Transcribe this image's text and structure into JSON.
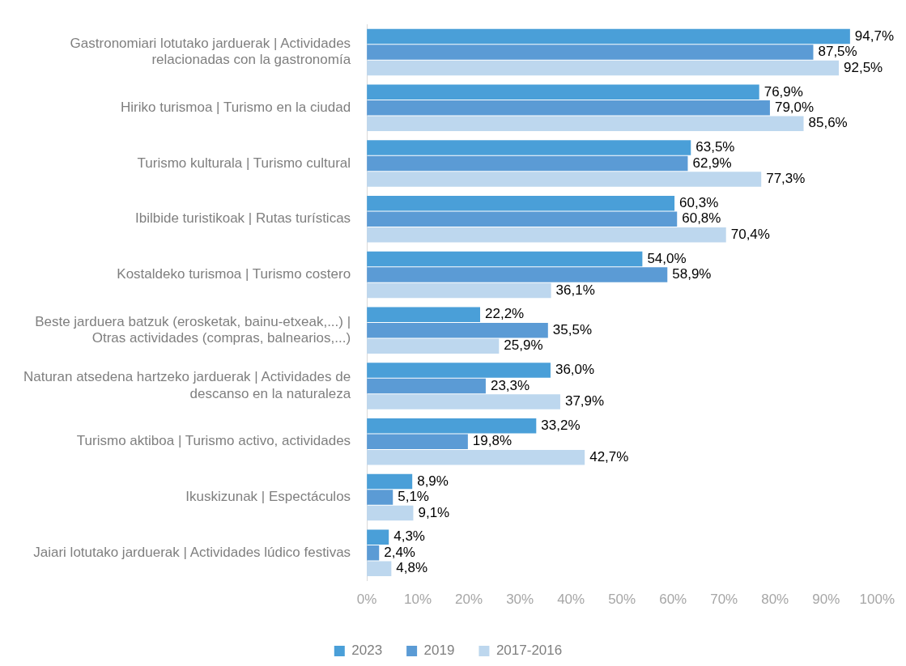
{
  "chart_data": {
    "type": "bar",
    "orientation": "horizontal",
    "categories": [
      "Gastronomiari lotutako jarduerak | Actividades\nrelacionadas con la gastronomía",
      "Hiriko turismoa | Turismo en la ciudad",
      "Turismo kulturala | Turismo cultural",
      "Ibilbide turistikoak | Rutas turísticas",
      "Kostaldeko turismoa | Turismo costero",
      "Beste jarduera batzuk (erosketak, bainu-etxeak,...) |\nOtras actividades (compras, balnearios,...)",
      "Naturan atsedena hartzeko jarduerak | Actividades de\ndescanso en la naturaleza",
      "Turismo aktiboa | Turismo activo, actividades",
      "Ikuskizunak | Espectáculos",
      "Jaiari lotutako jarduerak | Actividades lúdico festivas"
    ],
    "series": [
      {
        "name": "2023",
        "color": "#4a9fd8",
        "values": [
          94.7,
          76.9,
          63.5,
          60.3,
          54.0,
          22.2,
          36.0,
          33.2,
          8.9,
          4.3
        ],
        "value_labels": [
          "94,7%",
          "76,9%",
          "63,5%",
          "60,3%",
          "54,0%",
          "22,2%",
          "36,0%",
          "33,2%",
          "8,9%",
          "4,3%"
        ]
      },
      {
        "name": "2019",
        "color": "#5b9bd5",
        "values": [
          87.5,
          79.0,
          62.9,
          60.8,
          58.9,
          35.5,
          23.3,
          19.8,
          5.1,
          2.4
        ],
        "value_labels": [
          "87,5%",
          "79,0%",
          "62,9%",
          "60,8%",
          "58,9%",
          "35,5%",
          "23,3%",
          "19,8%",
          "5,1%",
          "2,4%"
        ]
      },
      {
        "name": "2017-2016",
        "color": "#bdd7ee",
        "values": [
          92.5,
          85.6,
          77.3,
          70.4,
          36.1,
          25.9,
          37.9,
          42.7,
          9.1,
          4.8
        ],
        "value_labels": [
          "92,5%",
          "85,6%",
          "77,3%",
          "70,4%",
          "36,1%",
          "25,9%",
          "37,9%",
          "42,7%",
          "9,1%",
          "4,8%"
        ]
      }
    ],
    "xlim": [
      0,
      100
    ],
    "xticks": [
      {
        "value": 0,
        "label": "0%"
      },
      {
        "value": 10,
        "label": "10%"
      },
      {
        "value": 20,
        "label": "20%"
      },
      {
        "value": 30,
        "label": "30%"
      },
      {
        "value": 40,
        "label": "40%"
      },
      {
        "value": 50,
        "label": "50%"
      },
      {
        "value": 60,
        "label": "60%"
      },
      {
        "value": 70,
        "label": "70%"
      },
      {
        "value": 80,
        "label": "80%"
      },
      {
        "value": 90,
        "label": "90%"
      },
      {
        "value": 100,
        "label": "100%"
      }
    ],
    "grid": false,
    "legend": "bottom"
  }
}
